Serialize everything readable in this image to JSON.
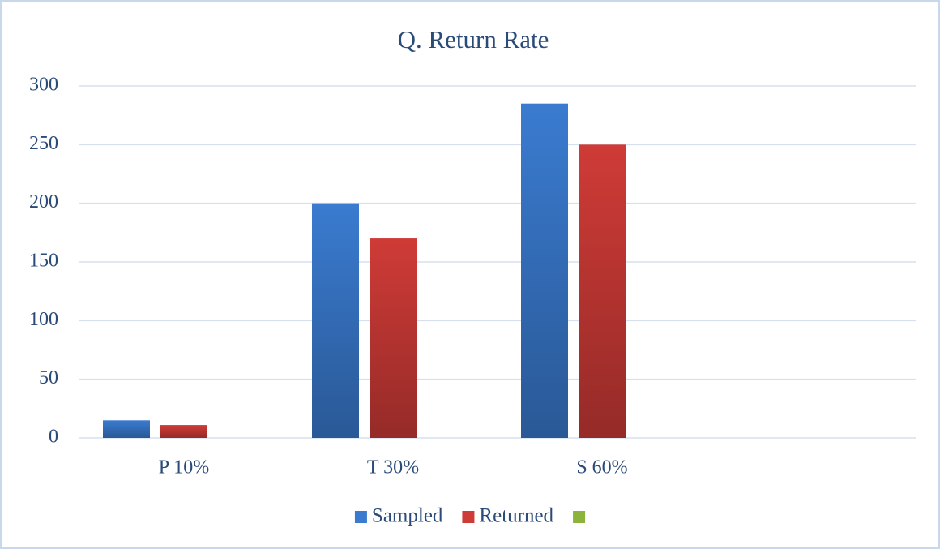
{
  "chart_data": {
    "type": "bar",
    "title": "Q. Return Rate",
    "categories": [
      "P 10%",
      "T 30%",
      "S 60%",
      null
    ],
    "series": [
      {
        "name": "Sampled",
        "color": "#3a7bd0",
        "values": [
          15,
          200,
          285,
          null
        ]
      },
      {
        "name": "Returned",
        "color": "#cf3b37",
        "values": [
          11,
          170,
          250,
          null
        ]
      },
      {
        "name": null,
        "color": "#8cb43c",
        "values": [
          null,
          null,
          null,
          null
        ]
      }
    ],
    "ylim": [
      0,
      300
    ],
    "yticks": [
      0,
      50,
      100,
      150,
      200,
      250,
      300
    ],
    "grid": true,
    "legend": "bottom"
  }
}
